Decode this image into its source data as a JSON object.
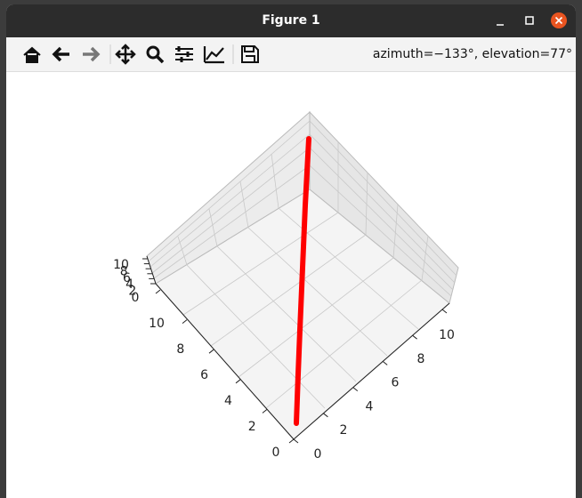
{
  "window": {
    "title": "Figure 1",
    "status": "azimuth=−133°, elevation=77°"
  },
  "axes": {
    "left_ticks": [
      0,
      2,
      4,
      6,
      8,
      10
    ],
    "right_ticks": [
      0,
      2,
      4,
      6,
      8,
      10
    ],
    "z_ticks": [
      0,
      2,
      4,
      6,
      8,
      10
    ]
  }
}
